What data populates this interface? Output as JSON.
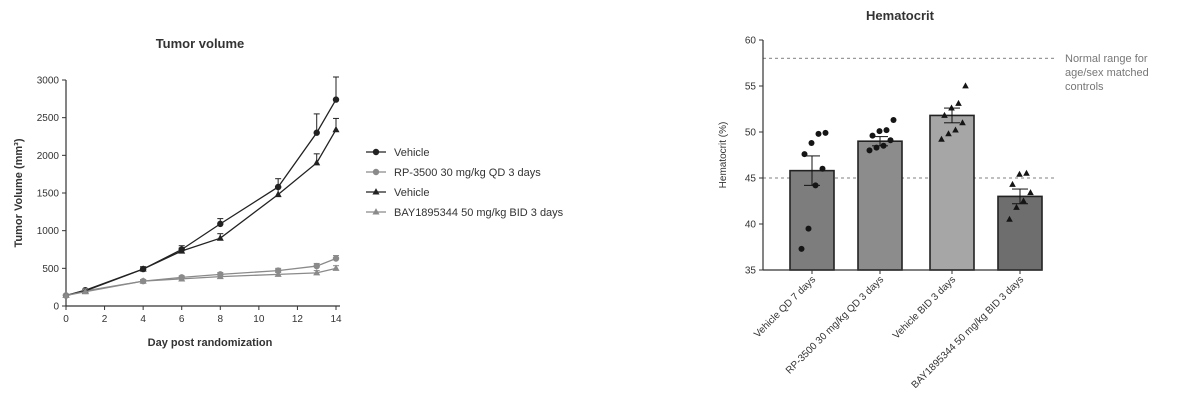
{
  "chart_data": [
    {
      "type": "line",
      "title": "Tumor volume",
      "xlabel": "Day post randomization",
      "ylabel": "Tumor Volume (mm³)",
      "xlim": [
        0,
        14
      ],
      "ylim": [
        0,
        3000
      ],
      "x_ticks": [
        "0",
        "2",
        "4",
        "6",
        "8",
        "10",
        "12",
        "14"
      ],
      "y_ticks": [
        "0",
        "500",
        "1000",
        "1500",
        "2000",
        "2500",
        "3000"
      ],
      "legend_position": "right",
      "x": [
        0,
        1,
        4,
        6,
        8,
        11,
        13,
        14
      ],
      "series": [
        {
          "name": "Vehicle",
          "marker": "circle",
          "color": "#222222",
          "values": [
            140,
            210,
            490,
            750,
            1090,
            1580,
            2300,
            2740
          ],
          "errors": [
            0,
            0,
            30,
            50,
            70,
            110,
            250,
            300
          ]
        },
        {
          "name": "RP-3500 30 mg/kg QD 3 days",
          "marker": "circle",
          "color": "#8a8a8a",
          "values": [
            140,
            200,
            330,
            380,
            420,
            470,
            530,
            630
          ],
          "errors": [
            0,
            0,
            20,
            20,
            25,
            30,
            35,
            40
          ]
        },
        {
          "name": "Vehicle",
          "marker": "triangle",
          "color": "#222222",
          "values": [
            140,
            200,
            490,
            730,
            900,
            1480,
            1900,
            2340
          ],
          "errors": [
            0,
            0,
            30,
            40,
            60,
            90,
            120,
            150
          ]
        },
        {
          "name": "BAY1895344 50 mg/kg BID 3 days",
          "marker": "triangle",
          "color": "#8a8a8a",
          "values": [
            140,
            190,
            330,
            360,
            390,
            420,
            440,
            500
          ],
          "errors": [
            0,
            0,
            20,
            20,
            20,
            25,
            30,
            35
          ]
        }
      ]
    },
    {
      "type": "bar",
      "title": "Hematocrit",
      "ylabel": "Hematocrit (%)",
      "ylim": [
        35,
        60
      ],
      "y_ticks": [
        "35",
        "40",
        "45",
        "50",
        "55",
        "60"
      ],
      "categories": [
        "Vehicle QD 7 days",
        "RP-3500 30 mg/kg QD 3 days",
        "Vehicle BID 3 days",
        "BAY1895344 50 mg/kg BID 3 days"
      ],
      "values": [
        45.8,
        49.0,
        51.8,
        43.0
      ],
      "errors": [
        1.6,
        0.5,
        0.8,
        0.8
      ],
      "bar_colors": [
        "#7d7d7d",
        "#8c8c8c",
        "#a6a6a6",
        "#6e6e6e"
      ],
      "point_markers": [
        "circle",
        "circle",
        "triangle",
        "triangle"
      ],
      "points": [
        [
          37.3,
          39.5,
          44.2,
          46.0,
          47.6,
          48.8,
          49.8,
          49.9
        ],
        [
          48.0,
          48.3,
          48.5,
          49.1,
          49.6,
          50.1,
          50.2,
          51.3
        ],
        [
          49.2,
          49.8,
          50.2,
          51.0,
          51.8,
          52.6,
          53.1,
          55.0
        ],
        [
          40.5,
          41.8,
          42.5,
          43.4,
          44.3,
          45.4,
          45.5
        ]
      ],
      "reference_lines": [
        58,
        45
      ],
      "annotation": "Normal range for age/sex matched controls"
    }
  ]
}
